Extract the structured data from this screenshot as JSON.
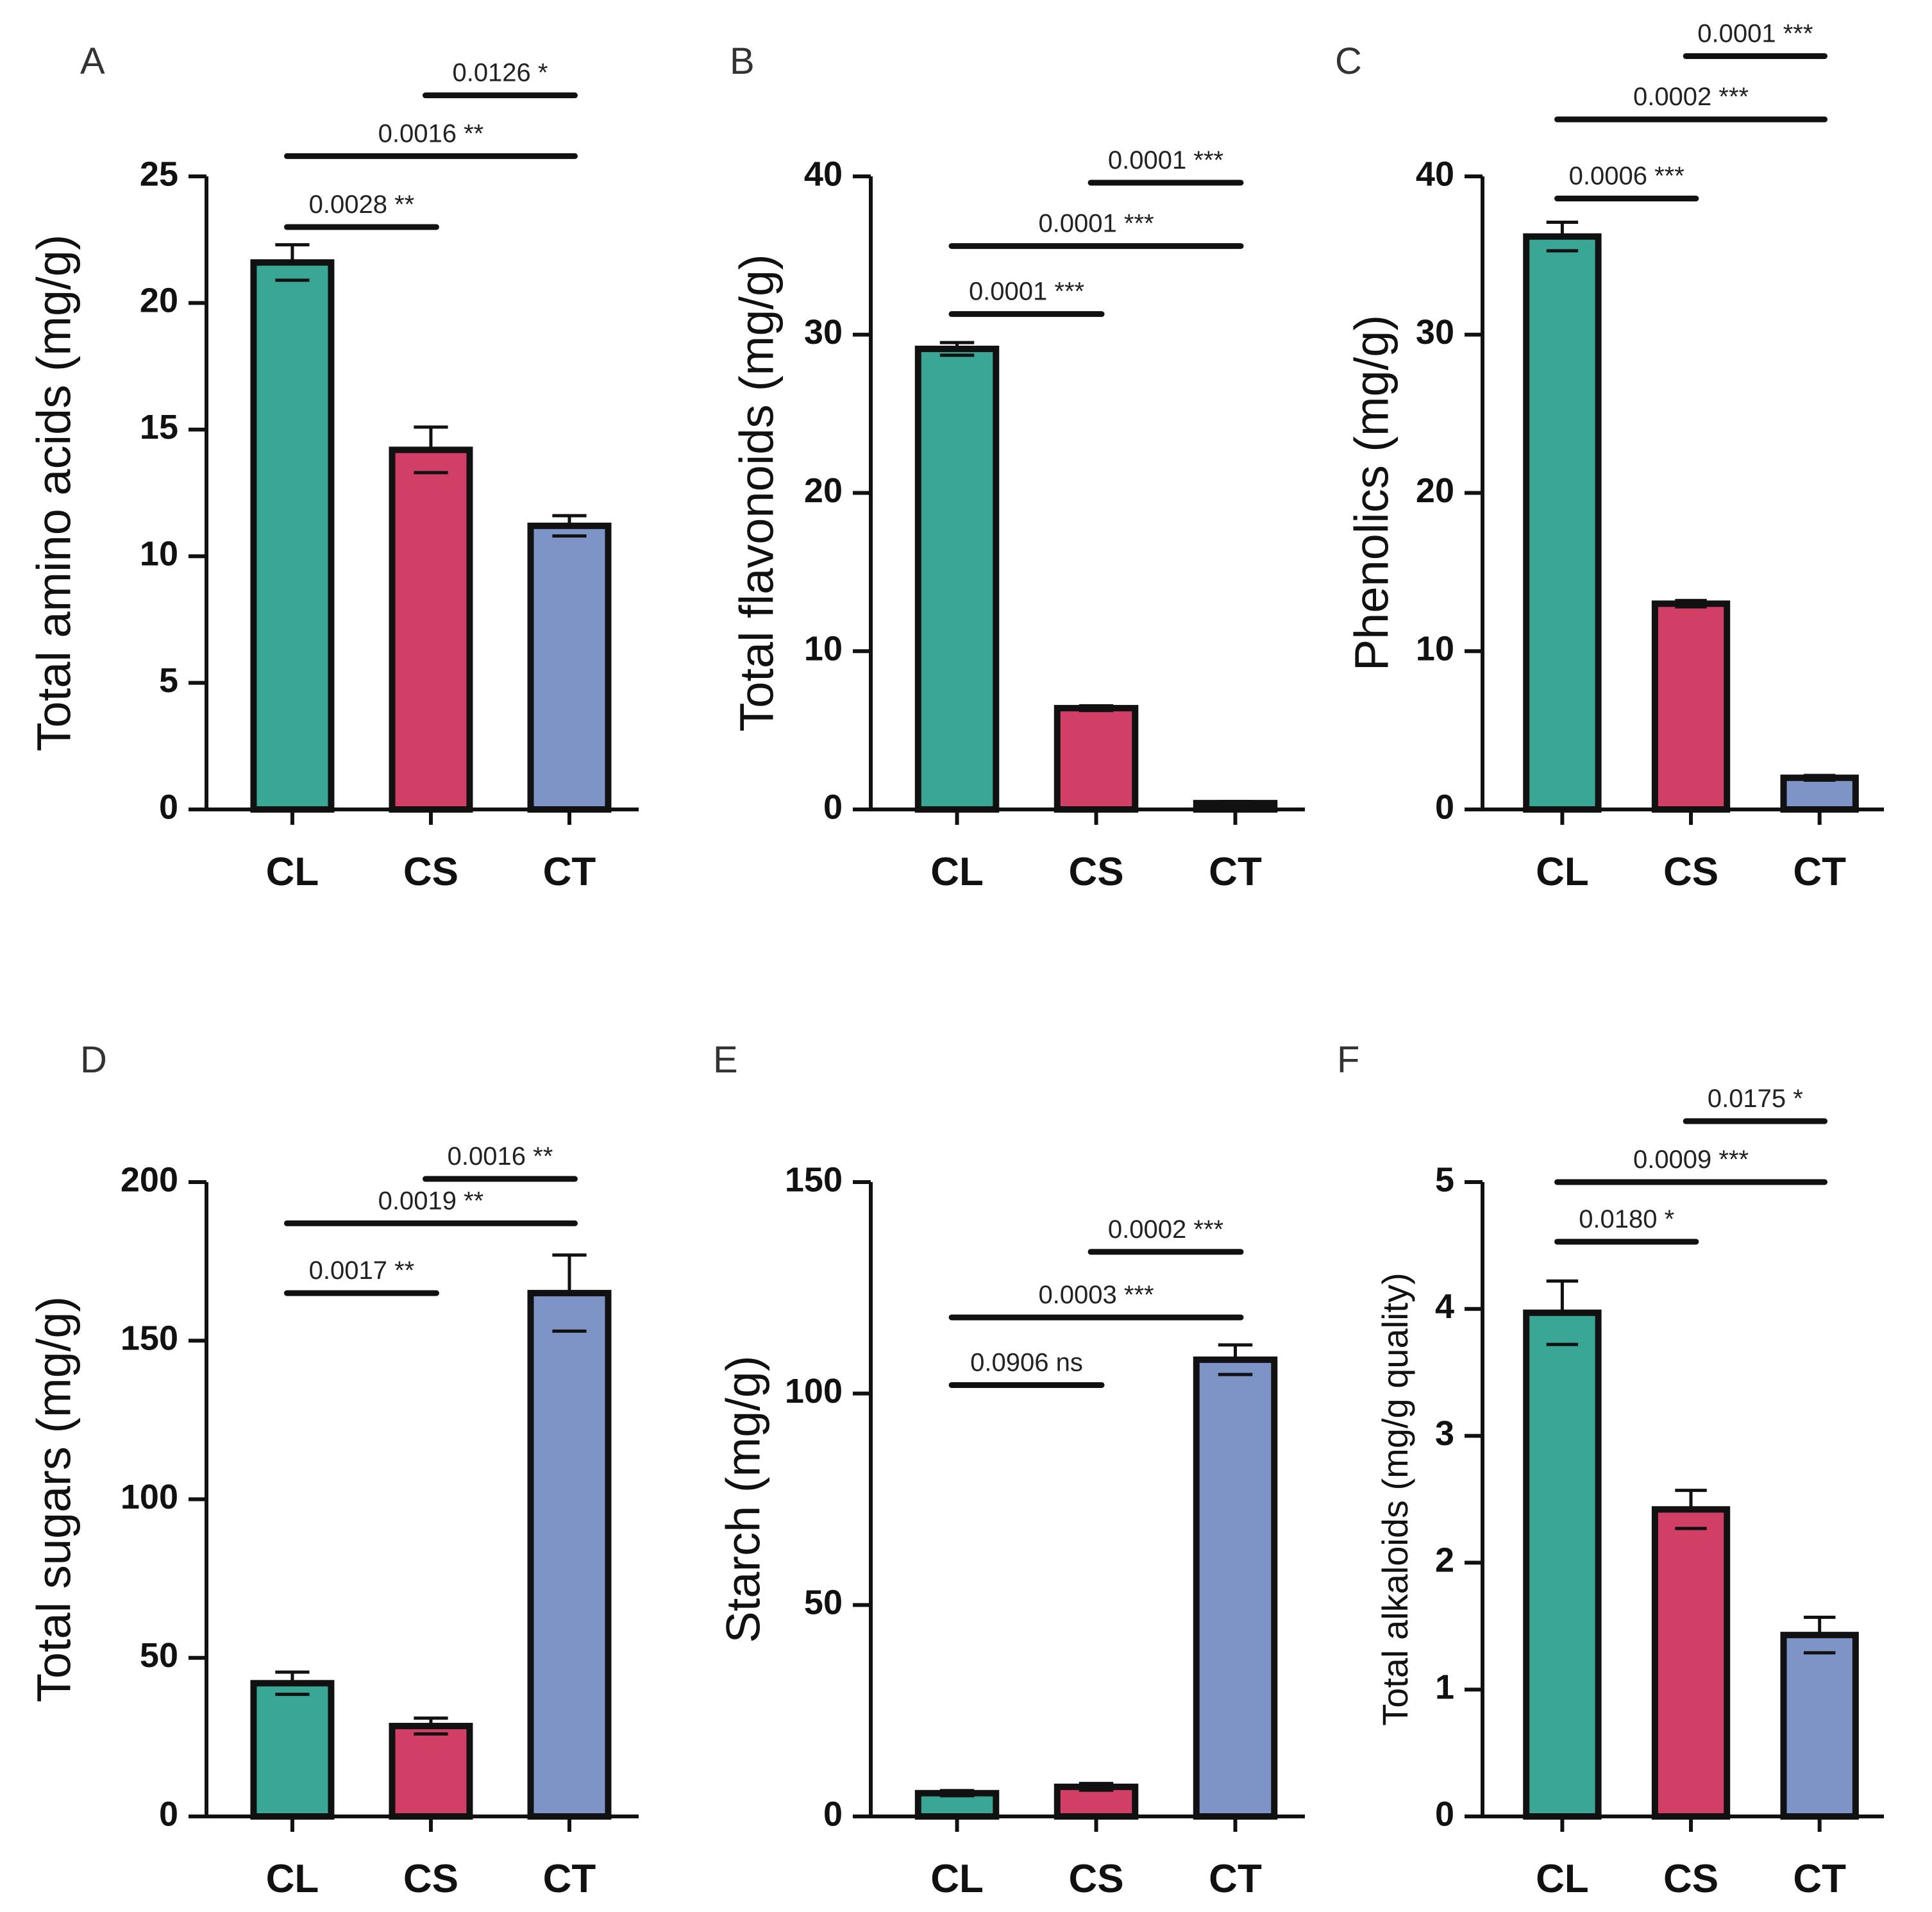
{
  "colors": {
    "CL": "#3aa796",
    "CS": "#d23f66",
    "CT": "#7e94c7",
    "stroke": "#111111"
  },
  "chart_data": [
    {
      "type": "bar",
      "panel": "A",
      "ylabel": "Total amino acids (mg/g)",
      "categories": [
        "CL",
        "CS",
        "CT"
      ],
      "values": [
        21.6,
        14.2,
        11.2
      ],
      "errors": [
        0.7,
        0.9,
        0.4
      ],
      "ylim": [
        0,
        25
      ],
      "yticks": [
        0,
        5,
        10,
        15,
        20,
        25
      ],
      "comparisons": [
        {
          "from": "CL",
          "to": "CS",
          "at": 23,
          "label": "0.0028 **"
        },
        {
          "from": "CL",
          "to": "CT",
          "at": 25.8,
          "label": "0.0016 **"
        },
        {
          "from": "CS",
          "to": "CT",
          "at": 28.2,
          "label": "0.0126 *"
        }
      ]
    },
    {
      "type": "bar",
      "panel": "B",
      "ylabel": "Total flavonoids (mg/g)",
      "categories": [
        "CL",
        "CS",
        "CT"
      ],
      "values": [
        29.1,
        6.4,
        0.4
      ],
      "errors": [
        0.4,
        0.15,
        0.1
      ],
      "ylim": [
        0,
        40
      ],
      "yticks": [
        0,
        10,
        20,
        30,
        40
      ],
      "comparisons": [
        {
          "from": "CL",
          "to": "CS",
          "at": 31.3,
          "label": "0.0001 ***"
        },
        {
          "from": "CL",
          "to": "CT",
          "at": 35.6,
          "label": "0.0001 ***"
        },
        {
          "from": "CS",
          "to": "CT",
          "at": 39.6,
          "label": "0.0001 ***"
        }
      ]
    },
    {
      "type": "bar",
      "panel": "C",
      "ylabel": "Phenolics (mg/g)",
      "categories": [
        "CL",
        "CS",
        "CT"
      ],
      "values": [
        36.2,
        13.0,
        2.0
      ],
      "errors": [
        0.9,
        0.2,
        0.15
      ],
      "ylim": [
        0,
        40
      ],
      "yticks": [
        0,
        10,
        20,
        30,
        40
      ],
      "comparisons": [
        {
          "from": "CL",
          "to": "CS",
          "at": 38.6,
          "label": "0.0006 ***"
        },
        {
          "from": "CL",
          "to": "CT",
          "at": 43.6,
          "label": "0.0002 ***"
        },
        {
          "from": "CS",
          "to": "CT",
          "at": 47.6,
          "label": "0.0001 ***"
        }
      ]
    },
    {
      "type": "bar",
      "panel": "D",
      "ylabel": "Total sugars (mg/g)",
      "categories": [
        "CL",
        "CS",
        "CT"
      ],
      "values": [
        42,
        28.5,
        165
      ],
      "errors": [
        3.5,
        2.5,
        12
      ],
      "ylim": [
        0,
        200
      ],
      "yticks": [
        0,
        50,
        100,
        150,
        200
      ],
      "comparisons": [
        {
          "from": "CL",
          "to": "CS",
          "at": 165,
          "label": "0.0017 **"
        },
        {
          "from": "CL",
          "to": "CT",
          "at": 187,
          "label": "0.0019 **"
        },
        {
          "from": "CS",
          "to": "CT",
          "at": 201,
          "label": "0.0016 **"
        }
      ]
    },
    {
      "type": "bar",
      "panel": "E",
      "ylabel": "Starch (mg/g)",
      "categories": [
        "CL",
        "CS",
        "CT"
      ],
      "values": [
        5.5,
        7.0,
        108
      ],
      "errors": [
        0.6,
        0.8,
        3.5
      ],
      "ylim": [
        0,
        150
      ],
      "yticks": [
        0,
        50,
        100,
        150
      ],
      "comparisons": [
        {
          "from": "CL",
          "to": "CS",
          "at": 102,
          "label": "0.0906 ns"
        },
        {
          "from": "CL",
          "to": "CT",
          "at": 118,
          "label": "0.0003 ***"
        },
        {
          "from": "CS",
          "to": "CT",
          "at": 133.5,
          "label": "0.0002 ***"
        }
      ]
    },
    {
      "type": "bar",
      "panel": "F",
      "ylabel": "Total alkaloids (mg/g quality)",
      "categories": [
        "CL",
        "CS",
        "CT"
      ],
      "values": [
        3.97,
        2.42,
        1.43
      ],
      "errors": [
        0.25,
        0.15,
        0.14
      ],
      "ylim": [
        0,
        5
      ],
      "yticks": [
        0,
        1,
        2,
        3,
        4,
        5
      ],
      "comparisons": [
        {
          "from": "CL",
          "to": "CS",
          "at": 4.53,
          "label": "0.0180 *"
        },
        {
          "from": "CL",
          "to": "CT",
          "at": 5.0,
          "label": "0.0009 ***"
        },
        {
          "from": "CS",
          "to": "CT",
          "at": 5.48,
          "label": "0.0175 *"
        }
      ]
    }
  ]
}
